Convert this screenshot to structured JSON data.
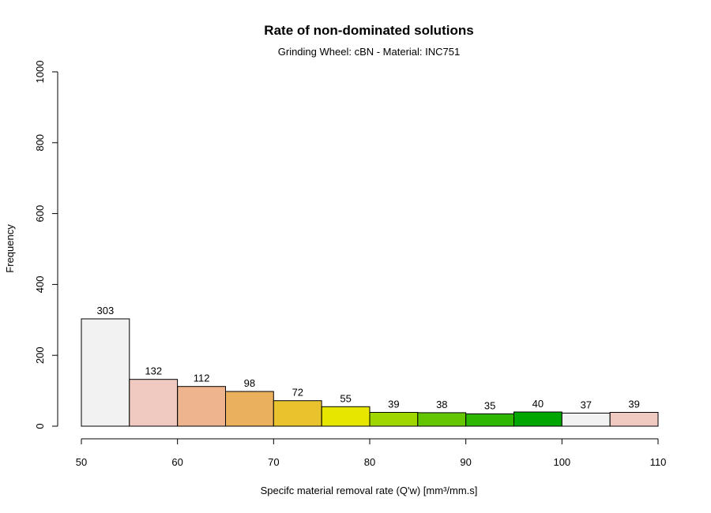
{
  "chart_data": {
    "type": "bar",
    "title": "Rate of non-dominated solutions",
    "subtitle": "Grinding Wheel: cBN - Material: INC751",
    "xlabel": "Specifc material removal rate (Q'w) [mm³/mm.s]",
    "ylabel": "Frequency",
    "bins": [
      {
        "start": 50,
        "end": 55,
        "value": 303,
        "color": "#F2F2F2"
      },
      {
        "start": 55,
        "end": 60,
        "value": 132,
        "color": "#F0C9C0"
      },
      {
        "start": 60,
        "end": 65,
        "value": 112,
        "color": "#EDB48E"
      },
      {
        "start": 65,
        "end": 70,
        "value": 98,
        "color": "#EBB05D"
      },
      {
        "start": 70,
        "end": 75,
        "value": 72,
        "color": "#E8C32E"
      },
      {
        "start": 75,
        "end": 80,
        "value": 55,
        "color": "#E6E600"
      },
      {
        "start": 80,
        "end": 85,
        "value": 39,
        "color": "#A0D600"
      },
      {
        "start": 85,
        "end": 90,
        "value": 38,
        "color": "#63C600"
      },
      {
        "start": 90,
        "end": 95,
        "value": 35,
        "color": "#2EB700"
      },
      {
        "start": 95,
        "end": 100,
        "value": 40,
        "color": "#00A600"
      },
      {
        "start": 100,
        "end": 105,
        "value": 37,
        "color": "#F2F2F2"
      },
      {
        "start": 105,
        "end": 110,
        "value": 39,
        "color": "#F0C9C0"
      }
    ],
    "xlim": [
      50,
      110
    ],
    "ylim": [
      0,
      1000
    ],
    "xticks": [
      50,
      60,
      70,
      80,
      90,
      100,
      110
    ],
    "yticks": [
      0,
      200,
      400,
      600,
      800,
      1000
    ],
    "grid": false,
    "legend": "none"
  }
}
